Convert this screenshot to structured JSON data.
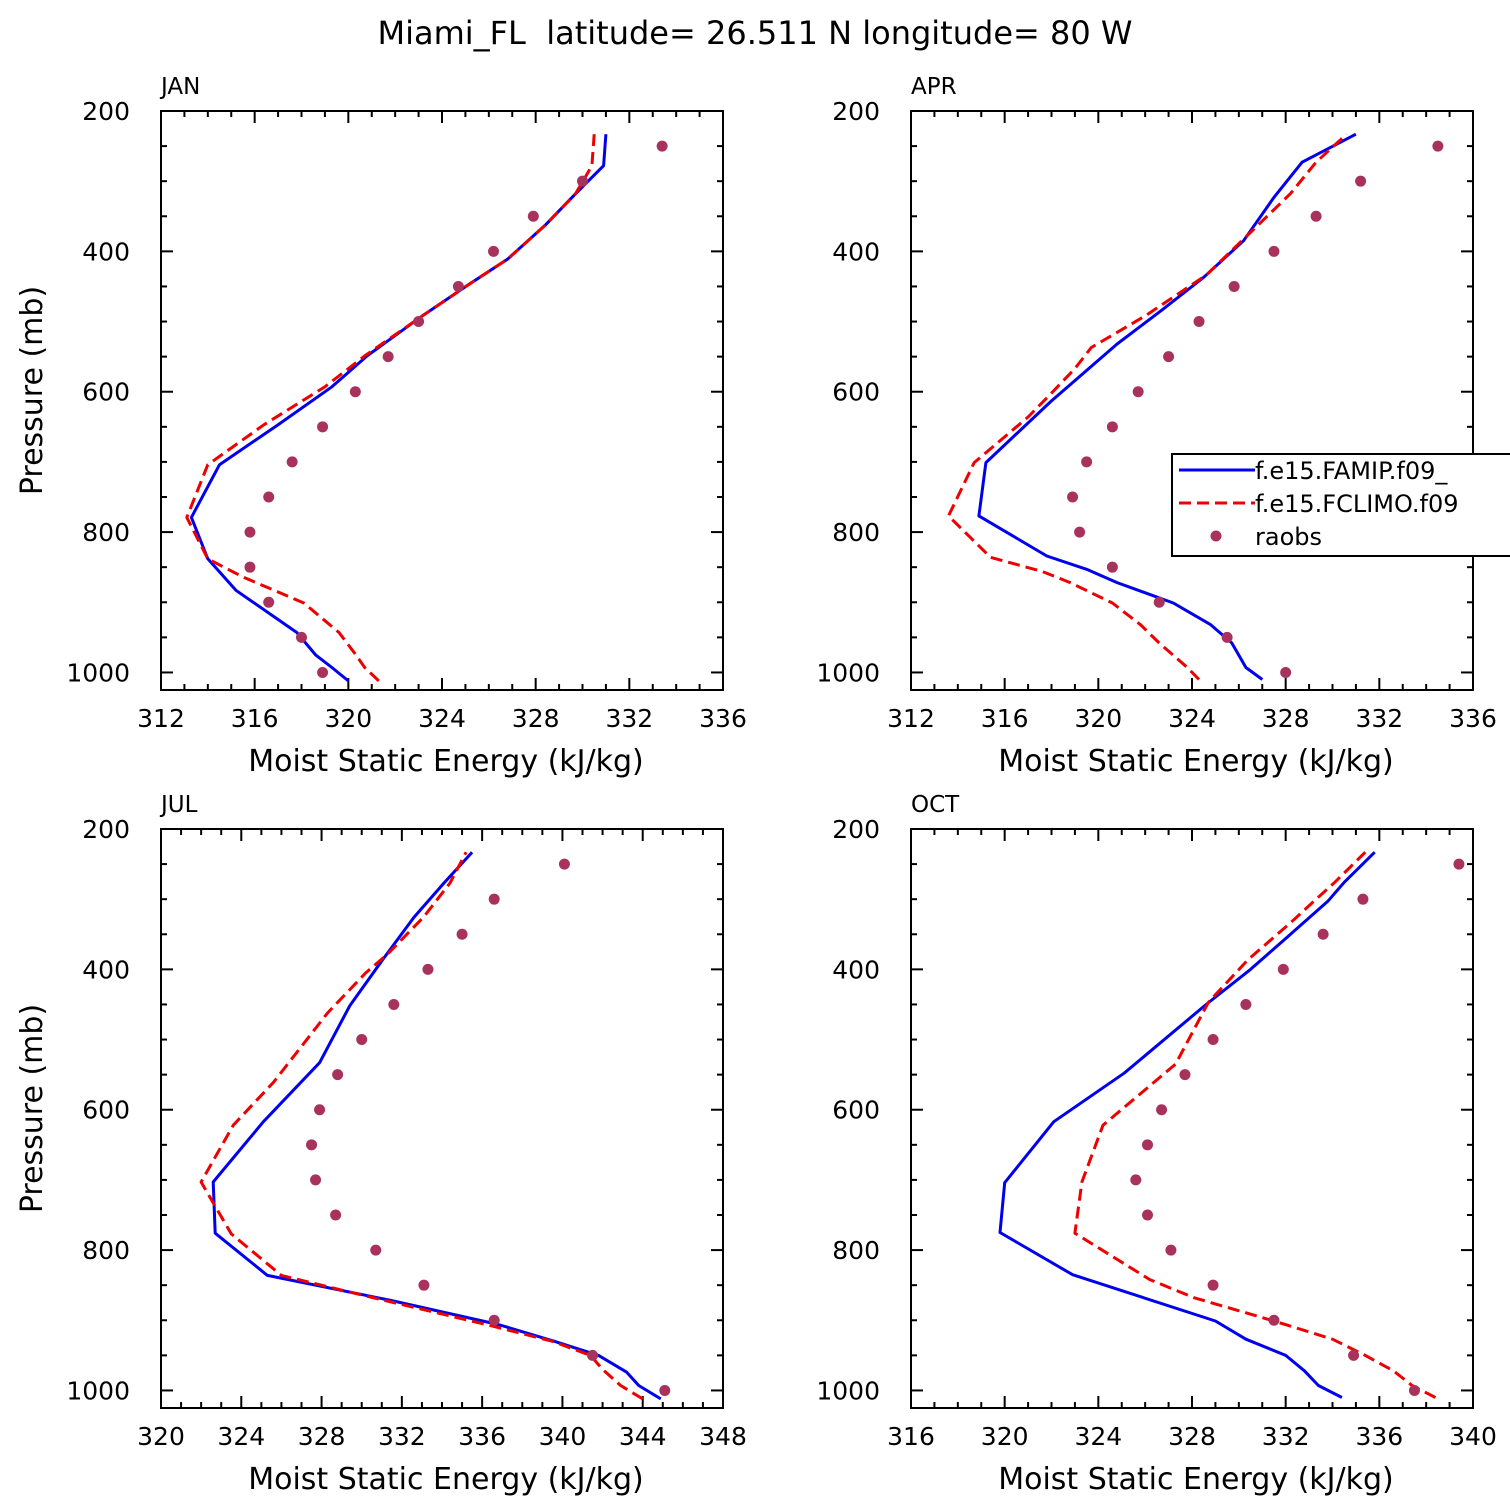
{
  "page_title": "Miami_FL  latitude= 26.511 N longitude= 80 W",
  "colors": {
    "FAMIP": "#0000ee",
    "FCLIMO": "#ee0000",
    "raobs": "#a8325c"
  },
  "chart_data": [
    {
      "type": "line",
      "panel": "JAN",
      "xlabel": "Moist Static Energy (kJ/kg)",
      "ylabel": "Pressure (mb)",
      "xlim": [
        312,
        336
      ],
      "xticks": [
        312,
        316,
        320,
        324,
        328,
        332,
        336
      ],
      "ylim": [
        200,
        1025
      ],
      "y_inverted": true,
      "yticks": [
        200,
        400,
        600,
        800,
        1000
      ],
      "series": [
        {
          "key": "FAMIP",
          "style": "solid",
          "points": [
            [
              320.0,
              1012
            ],
            [
              319.3,
              993
            ],
            [
              318.6,
              975
            ],
            [
              317.8,
              943
            ],
            [
              315.2,
              883
            ],
            [
              314.0,
              838
            ],
            [
              313.3,
              779
            ],
            [
              314.5,
              704
            ],
            [
              317.0,
              647
            ],
            [
              319.3,
              593
            ],
            [
              320.8,
              549
            ],
            [
              323.2,
              491
            ],
            [
              325.1,
              448
            ],
            [
              326.8,
              411
            ],
            [
              328.4,
              363
            ],
            [
              329.7,
              318
            ],
            [
              330.9,
              278
            ],
            [
              331.0,
              233
            ]
          ]
        },
        {
          "key": "FCLIMO",
          "style": "dashed",
          "points": [
            [
              321.3,
              1012
            ],
            [
              320.7,
              993
            ],
            [
              320.3,
              974
            ],
            [
              319.6,
              943
            ],
            [
              318.1,
              901
            ],
            [
              315.5,
              864
            ],
            [
              314.0,
              838
            ],
            [
              313.1,
              779
            ],
            [
              314.0,
              704
            ],
            [
              316.4,
              647
            ],
            [
              319.0,
              593
            ],
            [
              320.7,
              549
            ],
            [
              323.2,
              491
            ],
            [
              325.1,
              448
            ],
            [
              326.8,
              411
            ],
            [
              328.4,
              363
            ],
            [
              329.7,
              318
            ],
            [
              330.4,
              278
            ],
            [
              330.5,
              233
            ]
          ]
        },
        {
          "key": "raobs",
          "style": "points",
          "points": [
            [
              318.9,
              1000
            ],
            [
              318.0,
              950
            ],
            [
              316.6,
              900
            ],
            [
              315.8,
              850
            ],
            [
              315.8,
              800
            ],
            [
              316.6,
              750
            ],
            [
              317.6,
              700
            ],
            [
              318.9,
              650
            ],
            [
              320.3,
              600
            ],
            [
              321.7,
              550
            ],
            [
              323.0,
              500
            ],
            [
              324.7,
              450
            ],
            [
              326.2,
              400
            ],
            [
              327.9,
              350
            ],
            [
              330.0,
              300
            ],
            [
              333.4,
              250
            ]
          ]
        }
      ]
    },
    {
      "type": "line",
      "panel": "APR",
      "xlabel": "Moist Static Energy (kJ/kg)",
      "ylabel": "",
      "xlim": [
        312,
        336
      ],
      "xticks": [
        312,
        316,
        320,
        324,
        328,
        332,
        336
      ],
      "ylim": [
        200,
        1025
      ],
      "y_inverted": true,
      "yticks": [
        200,
        400,
        600,
        800,
        1000
      ],
      "legend": {
        "position": "right",
        "entries": [
          "f.e15.FAMIP.f09_",
          "f.e15.FCLIMO.f09",
          "raobs"
        ]
      },
      "series": [
        {
          "key": "FAMIP",
          "style": "solid",
          "points": [
            [
              327.0,
              1010
            ],
            [
              326.3,
              993
            ],
            [
              325.7,
              958
            ],
            [
              324.8,
              932
            ],
            [
              323.2,
              901
            ],
            [
              320.8,
              872
            ],
            [
              319.5,
              853
            ],
            [
              317.8,
              834
            ],
            [
              314.9,
              777
            ],
            [
              315.2,
              701
            ],
            [
              318.0,
              613
            ],
            [
              320.8,
              532
            ],
            [
              322.7,
              484
            ],
            [
              324.5,
              437
            ],
            [
              326.2,
              385
            ],
            [
              327.5,
              323
            ],
            [
              328.7,
              273
            ],
            [
              331.0,
              233
            ]
          ]
        },
        {
          "key": "FCLIMO",
          "style": "dashed",
          "points": [
            [
              324.3,
              1010
            ],
            [
              323.8,
              993
            ],
            [
              322.6,
              958
            ],
            [
              321.8,
              932
            ],
            [
              320.6,
              901
            ],
            [
              318.8,
              872
            ],
            [
              317.6,
              856
            ],
            [
              315.4,
              836
            ],
            [
              313.6,
              777
            ],
            [
              314.7,
              701
            ],
            [
              317.0,
              636
            ],
            [
              318.0,
              602
            ],
            [
              319.0,
              567
            ],
            [
              319.7,
              537
            ],
            [
              322.0,
              492
            ],
            [
              324.6,
              434
            ],
            [
              326.5,
              373
            ],
            [
              328.2,
              318
            ],
            [
              329.3,
              273
            ],
            [
              330.6,
              233
            ]
          ]
        },
        {
          "key": "raobs",
          "style": "points",
          "points": [
            [
              328.0,
              1000
            ],
            [
              325.5,
              950
            ],
            [
              322.6,
              900
            ],
            [
              320.6,
              850
            ],
            [
              319.2,
              800
            ],
            [
              318.9,
              750
            ],
            [
              319.5,
              700
            ],
            [
              320.6,
              650
            ],
            [
              321.7,
              600
            ],
            [
              323.0,
              550
            ],
            [
              324.3,
              500
            ],
            [
              325.8,
              450
            ],
            [
              327.5,
              400
            ],
            [
              329.3,
              350
            ],
            [
              331.2,
              300
            ],
            [
              334.5,
              250
            ]
          ]
        }
      ]
    },
    {
      "type": "line",
      "panel": "JUL",
      "xlabel": "Moist Static Energy (kJ/kg)",
      "ylabel": "Pressure (mb)",
      "xlim": [
        320,
        348
      ],
      "xticks": [
        320,
        324,
        328,
        332,
        336,
        340,
        344,
        348
      ],
      "ylim": [
        200,
        1025
      ],
      "y_inverted": true,
      "yticks": [
        200,
        400,
        600,
        800,
        1000
      ],
      "series": [
        {
          "key": "FAMIP",
          "style": "solid",
          "points": [
            [
              344.9,
              1012
            ],
            [
              343.8,
              993
            ],
            [
              343.2,
              974
            ],
            [
              341.8,
              950
            ],
            [
              339.6,
              930
            ],
            [
              336.8,
              906
            ],
            [
              331.5,
              872
            ],
            [
              325.3,
              836
            ],
            [
              322.7,
              776
            ],
            [
              322.6,
              703
            ],
            [
              325.1,
              617
            ],
            [
              327.9,
              533
            ],
            [
              329.4,
              452
            ],
            [
              331.1,
              384
            ],
            [
              332.6,
              326
            ],
            [
              334.1,
              277
            ],
            [
              335.5,
              233
            ]
          ]
        },
        {
          "key": "FCLIMO",
          "style": "dashed",
          "points": [
            [
              344.0,
              1012
            ],
            [
              342.9,
              993
            ],
            [
              342.0,
              970
            ],
            [
              341.4,
              950
            ],
            [
              339.5,
              930
            ],
            [
              336.2,
              906
            ],
            [
              330.3,
              866
            ],
            [
              326.0,
              836
            ],
            [
              323.5,
              777
            ],
            [
              322.0,
              703
            ],
            [
              323.6,
              622
            ],
            [
              325.6,
              561
            ],
            [
              328.3,
              462
            ],
            [
              330.2,
              405
            ],
            [
              331.3,
              378
            ],
            [
              333.1,
              325
            ],
            [
              334.4,
              277
            ],
            [
              335.2,
              233
            ]
          ]
        },
        {
          "key": "raobs",
          "style": "points",
          "points": [
            [
              345.1,
              1000
            ],
            [
              341.5,
              950
            ],
            [
              336.6,
              900
            ],
            [
              333.1,
              850
            ],
            [
              330.7,
              800
            ],
            [
              328.7,
              750
            ],
            [
              327.7,
              700
            ],
            [
              327.5,
              650
            ],
            [
              327.9,
              600
            ],
            [
              328.8,
              550
            ],
            [
              330.0,
              500
            ],
            [
              331.6,
              450
            ],
            [
              333.3,
              400
            ],
            [
              335.0,
              350
            ],
            [
              336.6,
              300
            ],
            [
              340.1,
              250
            ]
          ]
        }
      ]
    },
    {
      "type": "line",
      "panel": "OCT",
      "xlabel": "Moist Static Energy (kJ/kg)",
      "ylabel": "",
      "xlim": [
        316,
        340
      ],
      "xticks": [
        316,
        320,
        324,
        328,
        332,
        336,
        340
      ],
      "ylim": [
        200,
        1025
      ],
      "y_inverted": true,
      "yticks": [
        200,
        400,
        600,
        800,
        1000
      ],
      "series": [
        {
          "key": "FAMIP",
          "style": "solid",
          "points": [
            [
              334.4,
              1010
            ],
            [
              333.4,
              993
            ],
            [
              332.8,
              972
            ],
            [
              332.0,
              950
            ],
            [
              330.3,
              927
            ],
            [
              329.0,
              901
            ],
            [
              322.9,
              835
            ],
            [
              319.8,
              775
            ],
            [
              320.0,
              704
            ],
            [
              322.1,
              617
            ],
            [
              325.1,
              548
            ],
            [
              328.6,
              450
            ],
            [
              330.5,
              400
            ],
            [
              332.0,
              356
            ],
            [
              333.8,
              303
            ],
            [
              334.5,
              276
            ],
            [
              335.8,
              233
            ]
          ]
        },
        {
          "key": "FCLIMO",
          "style": "dashed",
          "points": [
            [
              338.4,
              1010
            ],
            [
              337.4,
              993
            ],
            [
              336.6,
              972
            ],
            [
              335.4,
              950
            ],
            [
              334.0,
              927
            ],
            [
              331.5,
              901
            ],
            [
              328.1,
              868
            ],
            [
              326.2,
              842
            ],
            [
              323.0,
              776
            ],
            [
              323.3,
              703
            ],
            [
              324.2,
              622
            ],
            [
              327.3,
              535
            ],
            [
              328.7,
              447
            ],
            [
              330.4,
              386
            ],
            [
              332.2,
              334
            ],
            [
              333.2,
              303
            ],
            [
              334.1,
              276
            ],
            [
              335.4,
              233
            ]
          ]
        },
        {
          "key": "raobs",
          "style": "points",
          "points": [
            [
              337.5,
              1000
            ],
            [
              334.9,
              950
            ],
            [
              331.5,
              900
            ],
            [
              328.9,
              850
            ],
            [
              327.1,
              800
            ],
            [
              326.1,
              750
            ],
            [
              325.6,
              700
            ],
            [
              326.1,
              650
            ],
            [
              326.7,
              600
            ],
            [
              327.7,
              550
            ],
            [
              328.9,
              500
            ],
            [
              330.3,
              450
            ],
            [
              331.9,
              400
            ],
            [
              333.6,
              350
            ],
            [
              335.3,
              300
            ],
            [
              339.4,
              250
            ]
          ]
        }
      ]
    }
  ]
}
